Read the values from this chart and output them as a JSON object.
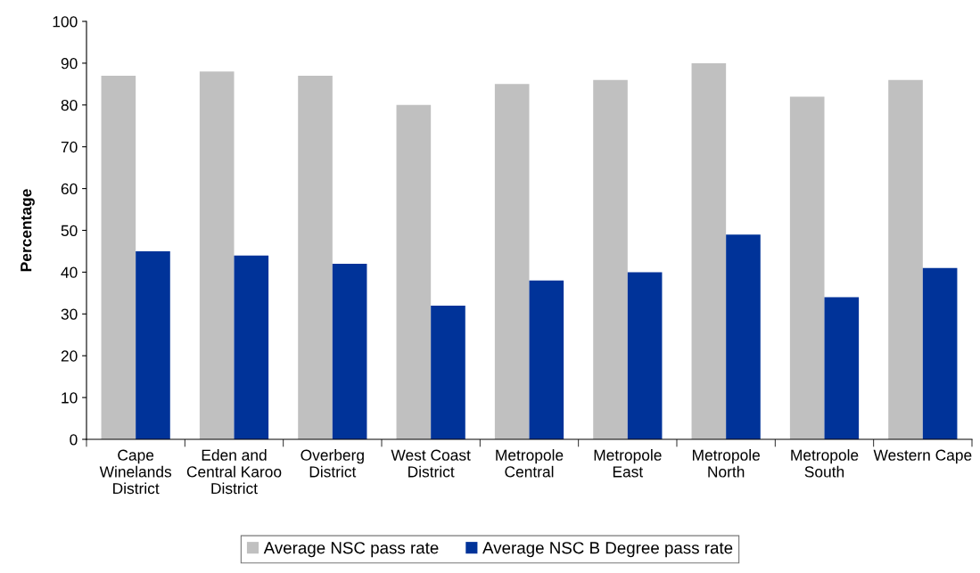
{
  "chart_data": {
    "type": "bar",
    "ylabel": "Percentage",
    "categories": [
      "Cape Winelands District",
      "Eden and Central Karoo District",
      "Overberg District",
      "West Coast District",
      "Metropole Central",
      "Metropole East",
      "Metropole North",
      "Metropole South",
      "Western Cape"
    ],
    "series": [
      {
        "name": "Average NSC pass rate",
        "color": "#c0c0c0",
        "values": [
          87,
          88,
          87,
          80,
          85,
          86,
          90,
          82,
          86
        ]
      },
      {
        "name": "Average NSC B Degree pass rate",
        "color": "#003399",
        "values": [
          45,
          44,
          42,
          32,
          38,
          40,
          49,
          34,
          41
        ]
      }
    ],
    "ylim": [
      0,
      100
    ],
    "yticks": [
      0,
      10,
      20,
      30,
      40,
      50,
      60,
      70,
      80,
      90,
      100
    ],
    "grid": false,
    "legend": "bottom"
  }
}
